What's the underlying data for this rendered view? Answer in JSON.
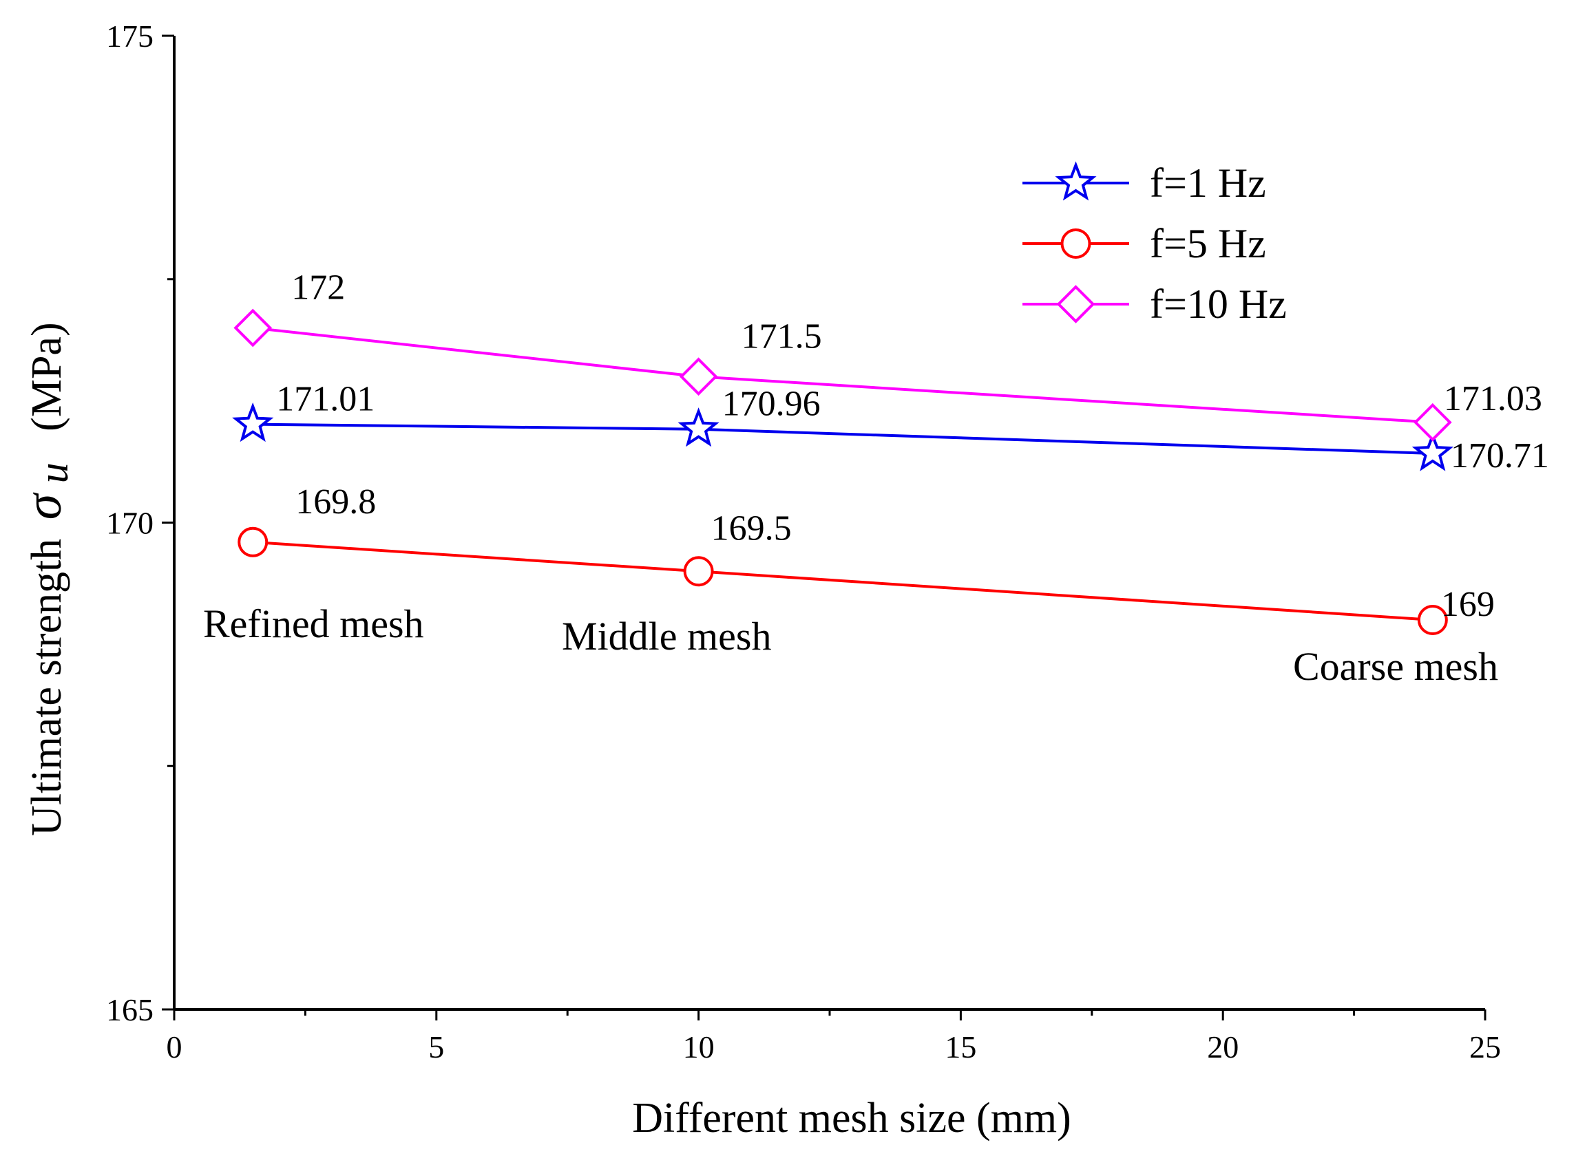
{
  "chart_data": {
    "type": "line",
    "xlabel": "Different mesh size (mm)",
    "ylabel_prefix": "Ultimate strength",
    "ylabel_symbol": "σ",
    "ylabel_subscript": "u",
    "ylabel_unit": "(MPa)",
    "xlim": [
      0,
      25
    ],
    "ylim": [
      165,
      175
    ],
    "x_ticks": [
      "0",
      "5",
      "10",
      "15",
      "20",
      "25"
    ],
    "y_ticks": [
      "165",
      "170",
      "175"
    ],
    "x": [
      1.5,
      10,
      24
    ],
    "series": [
      {
        "name": "f=1 Hz",
        "color": "#0000ee",
        "marker": "star",
        "values": [
          171.01,
          170.96,
          170.71
        ],
        "labels": [
          "171.01",
          "170.96",
          "170.71"
        ]
      },
      {
        "name": "f=5 Hz",
        "color": "#ff0000",
        "marker": "circle",
        "values": [
          169.8,
          169.5,
          169.0
        ],
        "labels": [
          "169.8",
          "169.5",
          "169"
        ]
      },
      {
        "name": "f=10 Hz",
        "color": "#ff00ff",
        "marker": "diamond",
        "values": [
          172.0,
          171.5,
          171.03
        ],
        "labels": [
          "172",
          "171.5",
          "171.03"
        ]
      }
    ],
    "annotations": [
      "Refined mesh",
      "Middle mesh",
      "Coarse mesh"
    ],
    "legend_position": "top-right"
  }
}
